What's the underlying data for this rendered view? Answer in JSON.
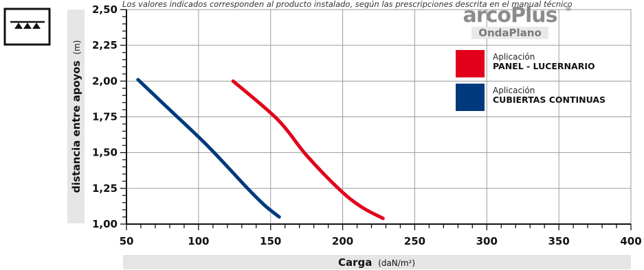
{
  "note": "Los valores indicados corresponden al producto instalado, según las prescripciones descrita en el manual técnico",
  "logo": {
    "brand": "arcoPlus",
    "reg_mark": "®",
    "product": "OndaPlano"
  },
  "legend": [
    {
      "caption": "Aplicación",
      "label": "PANEL - LUCERNARIO",
      "color": "#e2001a"
    },
    {
      "caption": "Aplicación",
      "label": "CUBIERTAS CONTINUAS",
      "color": "#003a7d"
    }
  ],
  "icon": "load-support-icon",
  "chart_data": {
    "type": "line",
    "xlabel": {
      "main": "Carga",
      "unit": "(daN/m²)"
    },
    "ylabel": {
      "main": "distancia entre apoyos",
      "unit": "(m)"
    },
    "xlim": [
      50,
      400
    ],
    "ylim": [
      1.0,
      2.5
    ],
    "x_ticks": [
      "50",
      "100",
      "150",
      "200",
      "250",
      "300",
      "350",
      "400"
    ],
    "y_ticks": [
      "1,00",
      "1,25",
      "1,50",
      "1,75",
      "2,00",
      "2,25",
      "2,50"
    ],
    "grid": true,
    "series": [
      {
        "name": "PANEL - LUCERNARIO",
        "color": "#e2001a",
        "points": [
          [
            124,
            2.0
          ],
          [
            155,
            1.73
          ],
          [
            175,
            1.48
          ],
          [
            198,
            1.24
          ],
          [
            213,
            1.12
          ],
          [
            228,
            1.04
          ]
        ]
      },
      {
        "name": "CUBIERTAS CONTINUAS",
        "color": "#003a7d",
        "points": [
          [
            58,
            2.01
          ],
          [
            80,
            1.8
          ],
          [
            107,
            1.54
          ],
          [
            134,
            1.25
          ],
          [
            146,
            1.13
          ],
          [
            156,
            1.05
          ]
        ]
      }
    ]
  }
}
